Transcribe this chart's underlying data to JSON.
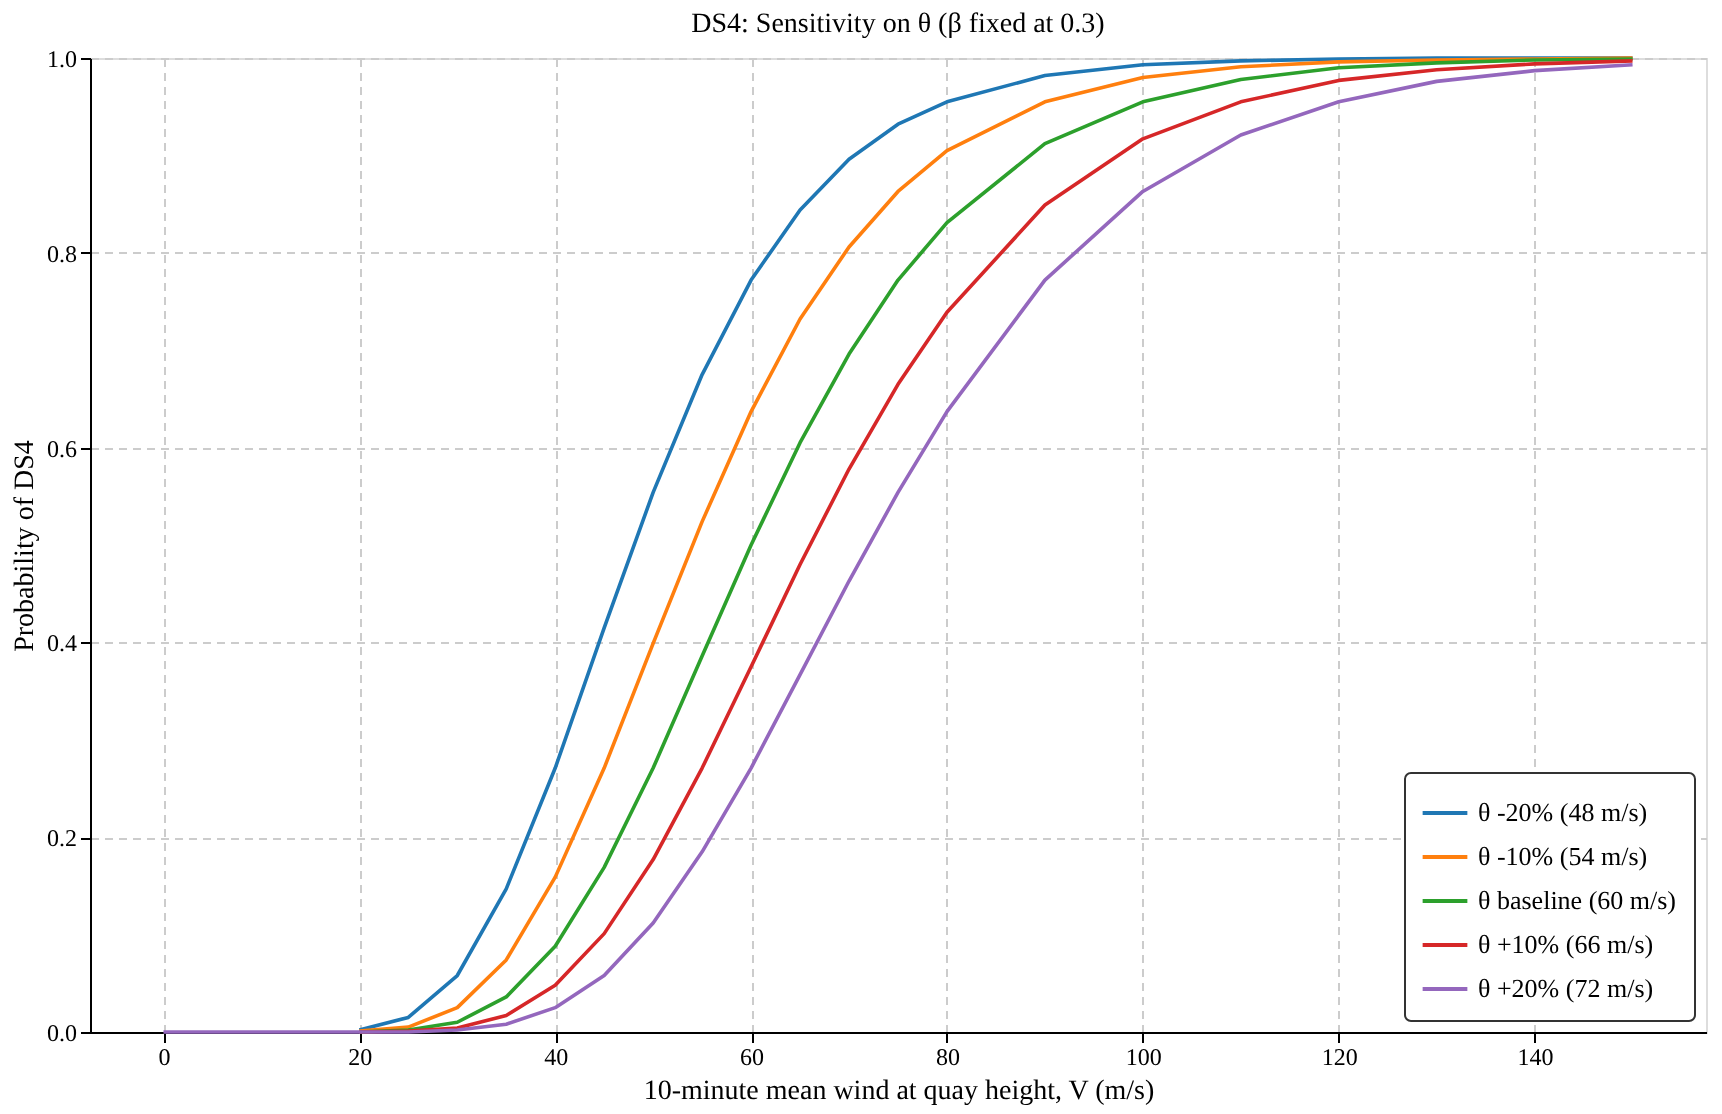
{
  "chart_data": {
    "type": "line",
    "title": "DS4: Sensitivity on θ (β fixed at 0.3)",
    "xlabel": "10-minute mean wind at quay height, V (m/s)",
    "ylabel": "Probability of DS4",
    "x": [
      0,
      10,
      20,
      25,
      30,
      35,
      40,
      45,
      50,
      55,
      60,
      65,
      70,
      75,
      80,
      90,
      100,
      110,
      120,
      130,
      140,
      150
    ],
    "series": [
      {
        "name": "θ -20% (48 m/s)",
        "color": "#1f77b4",
        "values": [
          null,
          null,
          0.002,
          0.015,
          0.058,
          0.147,
          0.271,
          0.415,
          0.554,
          0.675,
          0.772,
          0.844,
          0.896,
          0.932,
          0.955,
          0.982,
          0.993,
          0.997,
          0.999,
          1.0,
          1.0,
          1.0
        ]
      },
      {
        "name": "θ -10% (54 m/s)",
        "color": "#ff7f0e",
        "values": [
          null,
          null,
          0.001,
          0.005,
          0.025,
          0.074,
          0.159,
          0.271,
          0.399,
          0.524,
          0.637,
          0.732,
          0.806,
          0.863,
          0.905,
          0.955,
          0.98,
          0.991,
          0.996,
          0.998,
          0.999,
          1.0
        ]
      },
      {
        "name": "θ baseline (60 m/s)",
        "color": "#2ca02c",
        "values": [
          null,
          null,
          0,
          0.002,
          0.01,
          0.036,
          0.088,
          0.169,
          0.271,
          0.386,
          0.5,
          0.605,
          0.696,
          0.772,
          0.831,
          0.912,
          0.955,
          0.978,
          0.99,
          0.995,
          0.998,
          0.999
        ]
      },
      {
        "name": "θ +10% (66 m/s)",
        "color": "#d62728",
        "values": [
          null,
          null,
          0,
          0.001,
          0.004,
          0.017,
          0.048,
          0.101,
          0.177,
          0.271,
          0.375,
          0.48,
          0.578,
          0.665,
          0.739,
          0.849,
          0.917,
          0.955,
          0.977,
          0.988,
          0.994,
          0.997
        ]
      },
      {
        "name": "θ +20% (72 m/s)",
        "color": "#9467bd",
        "values": [
          0,
          0,
          0,
          0,
          0.002,
          0.008,
          0.025,
          0.058,
          0.112,
          0.185,
          0.271,
          0.367,
          0.463,
          0.554,
          0.637,
          0.772,
          0.863,
          0.921,
          0.955,
          0.976,
          0.987,
          0.993
        ]
      }
    ],
    "xlim": [
      -7.5,
      157.5
    ],
    "ylim": [
      0,
      1
    ],
    "xticks": [
      0,
      20,
      40,
      60,
      80,
      100,
      120,
      140
    ],
    "yticks": [
      {
        "value": 0,
        "label": "0.0"
      },
      0.2,
      0.4,
      0.6,
      0.8,
      {
        "value": 1,
        "label": "1.0"
      }
    ],
    "grid": true,
    "legend": "bottom right",
    "line_style": "solid",
    "marker": "none"
  }
}
